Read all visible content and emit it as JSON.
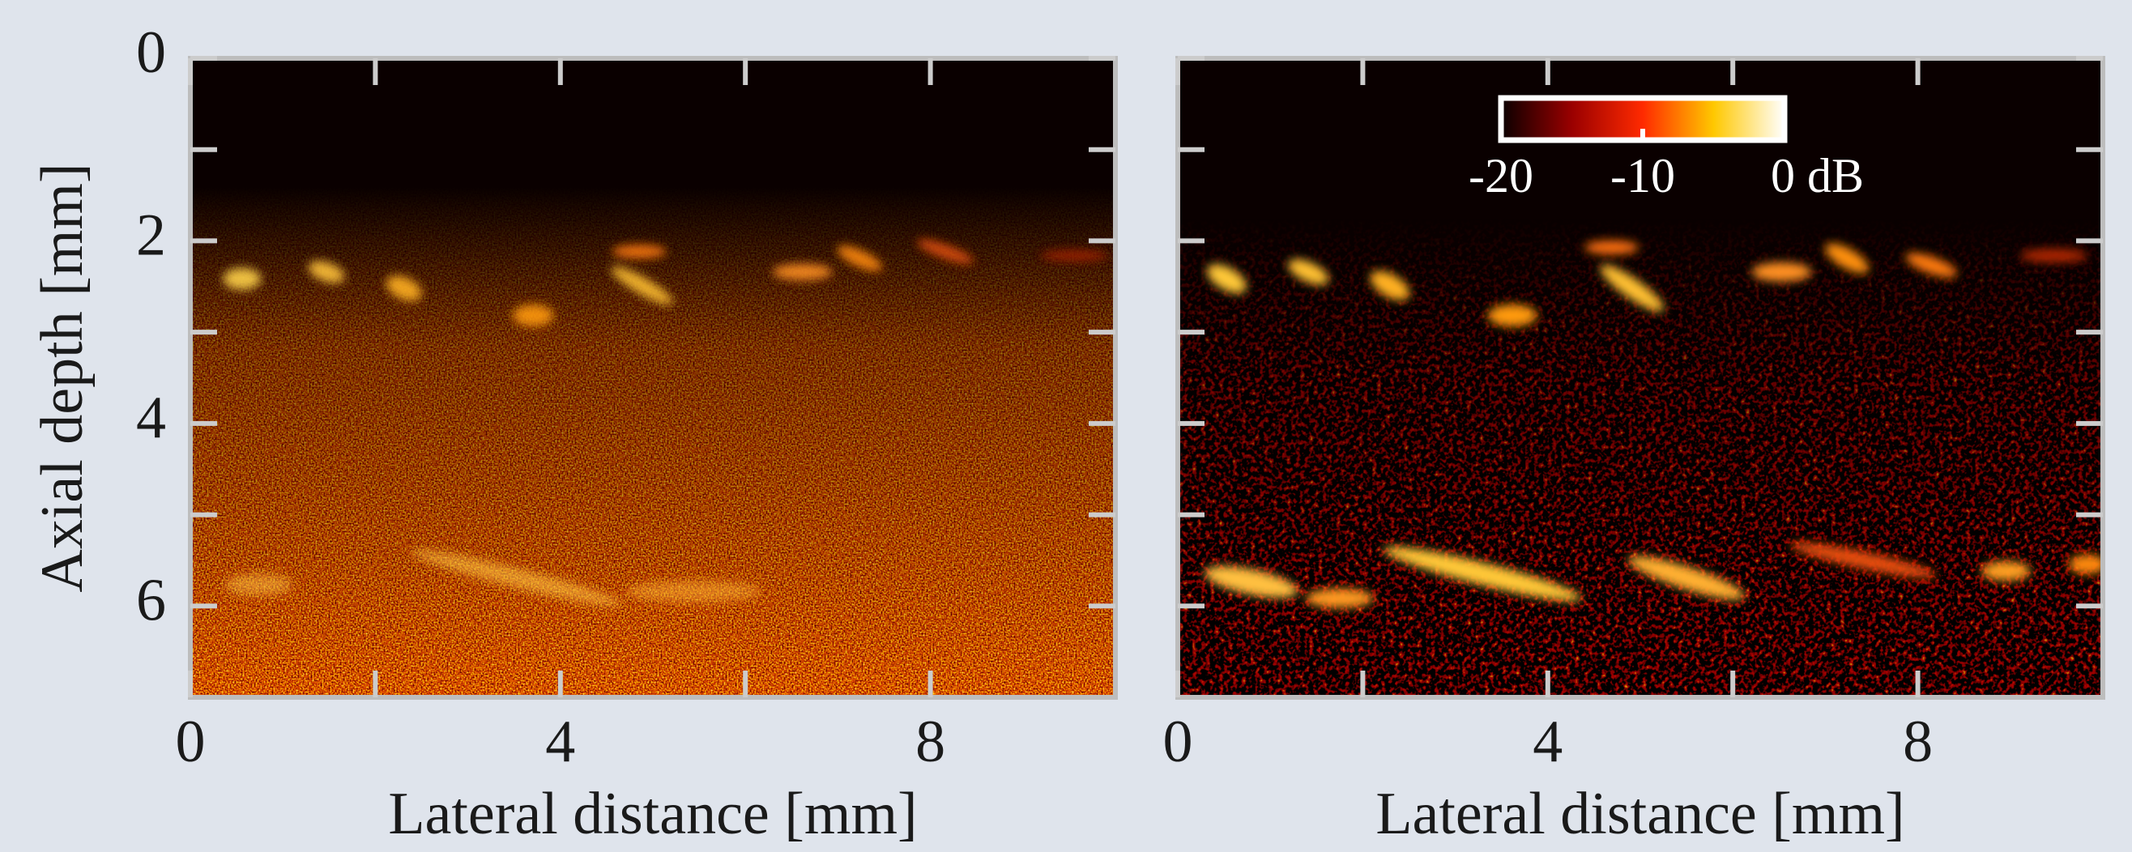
{
  "chart_data": [
    {
      "type": "image",
      "xlabel": "Lateral distance [mm]",
      "ylabel": "Axial depth [mm]",
      "xlim": [
        0,
        10
      ],
      "xticks": [
        0,
        4,
        8
      ],
      "xticks_minor": [
        2,
        6
      ],
      "ylim": [
        7,
        0
      ],
      "yticks": [
        0,
        2,
        4,
        6
      ],
      "yticks_minor": [
        1,
        3,
        5
      ]
    },
    {
      "type": "image",
      "xlabel": "Lateral distance [mm]",
      "sharey": true,
      "xlim": [
        0,
        10
      ],
      "xticks": [
        0,
        4,
        8
      ],
      "xticks_minor": [
        2,
        6
      ],
      "colorbar": {
        "lim": [
          -20,
          0
        ],
        "ticks": [
          -20,
          -10,
          {
            "value": 0,
            "label": "0 dB"
          }
        ],
        "colors": [
          "#0a0000",
          "#9a0000",
          "#ff2a00",
          "#ffc800",
          "#ffffff"
        ]
      }
    }
  ]
}
